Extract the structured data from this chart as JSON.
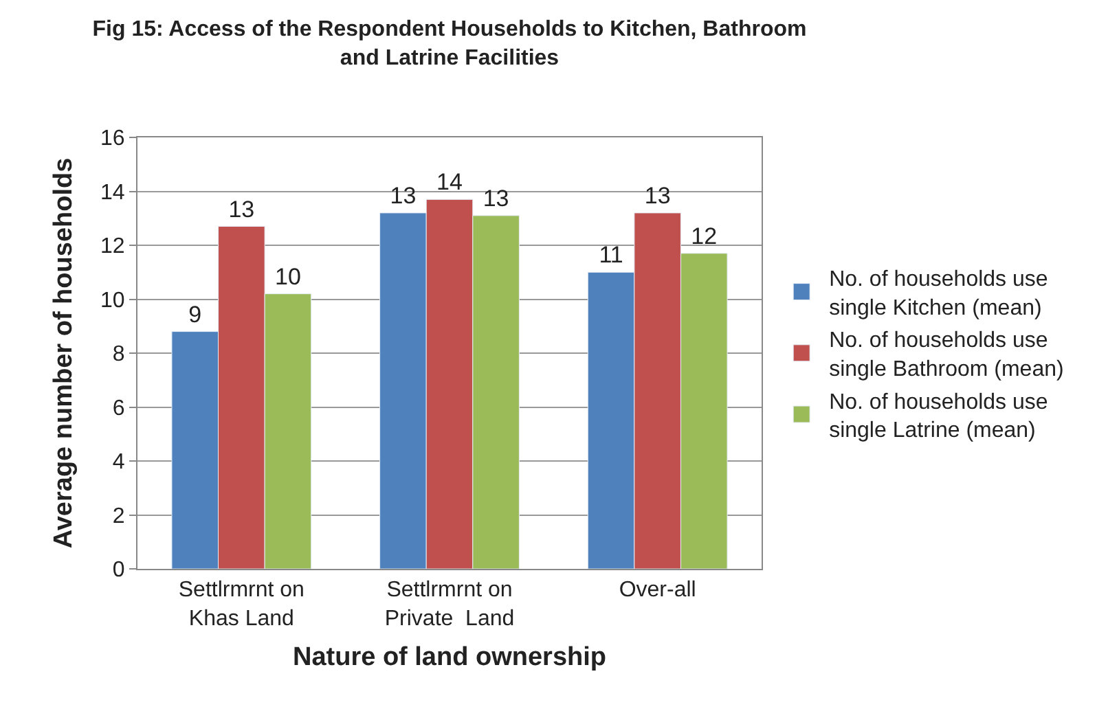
{
  "chart_data": {
    "type": "bar",
    "title": "Fig 15: Access of the Respondent Households to Kitchen, Bathroom\nand Latrine Facilities",
    "xlabel": "Nature of land ownership",
    "ylabel": "Average number of households",
    "categories": [
      "Settlrmrnt on\nKhas Land",
      "Settlrmrnt on\nPrivate  Land",
      "Over-all"
    ],
    "series": [
      {
        "name": "No. of households use\nsingle Kitchen (mean)",
        "color": "#4f81bd",
        "values": [
          8.8,
          13.2,
          11.0
        ],
        "value_labels": [
          "9",
          "13",
          "11"
        ]
      },
      {
        "name": "No. of households use\nsingle Bathroom (mean)",
        "color": "#c0504d",
        "values": [
          12.7,
          13.7,
          13.2
        ],
        "value_labels": [
          "13",
          "14",
          "13"
        ]
      },
      {
        "name": "No. of households use\nsingle Latrine (mean)",
        "color": "#9bbb59",
        "values": [
          10.2,
          13.1,
          11.7
        ],
        "value_labels": [
          "10",
          "13",
          "12"
        ]
      }
    ],
    "ylim": [
      0,
      16
    ],
    "yticks": [
      0,
      2,
      4,
      6,
      8,
      10,
      12,
      14,
      16
    ],
    "grid": "y",
    "legend": "right"
  }
}
